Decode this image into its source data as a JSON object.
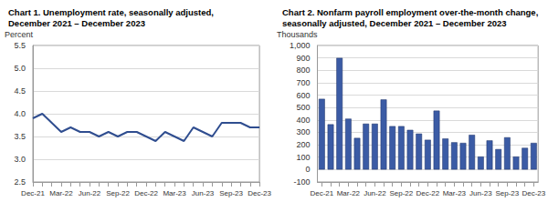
{
  "chart_data": [
    {
      "type": "line",
      "title": [
        "Chart 1. Unemployment rate, seasonally adjusted,",
        "December 2021 – December 2023"
      ],
      "y_label": "Percent",
      "categories": [
        "Dec-21",
        null,
        null,
        "Mar-22",
        null,
        null,
        "Jun-22",
        null,
        null,
        "Sep-22",
        null,
        null,
        "Dec-22",
        null,
        null,
        "Mar-23",
        null,
        null,
        "Jun-23",
        null,
        null,
        "Sep-23",
        null,
        null,
        "Dec-23"
      ],
      "values": [
        3.9,
        4.0,
        3.8,
        3.6,
        3.7,
        3.6,
        3.6,
        3.5,
        3.6,
        3.5,
        3.6,
        3.6,
        3.5,
        3.4,
        3.6,
        3.5,
        3.4,
        3.7,
        3.6,
        3.5,
        3.8,
        3.8,
        3.8,
        3.7,
        3.7
      ],
      "color": "#2f4d8f",
      "ylim": [
        2.5,
        5.5
      ],
      "yticks": [
        2.5,
        {
          "value": 3,
          "label": "3.0"
        },
        3.5,
        {
          "value": 4,
          "label": "4.0"
        },
        4.5,
        {
          "value": 5,
          "label": "5.0"
        },
        5.5
      ],
      "grid": true
    },
    {
      "type": "bar",
      "title": [
        "Chart 2. Nonfarm payroll employment over-the-month change,",
        "seasonally adjusted, December 2021 – December 2023"
      ],
      "y_label": "Thousands",
      "categories": [
        "Dec-21",
        null,
        null,
        "Mar-22",
        null,
        null,
        "Jun-22",
        null,
        null,
        "Sep-22",
        null,
        null,
        "Dec-22",
        null,
        null,
        "Mar-23",
        null,
        null,
        "Jun-23",
        null,
        null,
        "Sep-23",
        null,
        null,
        "Dec-23"
      ],
      "values": [
        570,
        365,
        900,
        410,
        255,
        370,
        370,
        565,
        350,
        350,
        320,
        290,
        240,
        475,
        250,
        220,
        215,
        280,
        105,
        235,
        165,
        260,
        105,
        175,
        215
      ],
      "color": "#3b5ba5",
      "ylim": [
        -100,
        1000
      ],
      "yticks": [
        -100,
        0,
        100,
        200,
        300,
        400,
        500,
        600,
        700,
        800,
        900,
        {
          "value": 1000,
          "label": "1,000"
        }
      ],
      "grid": true
    }
  ]
}
